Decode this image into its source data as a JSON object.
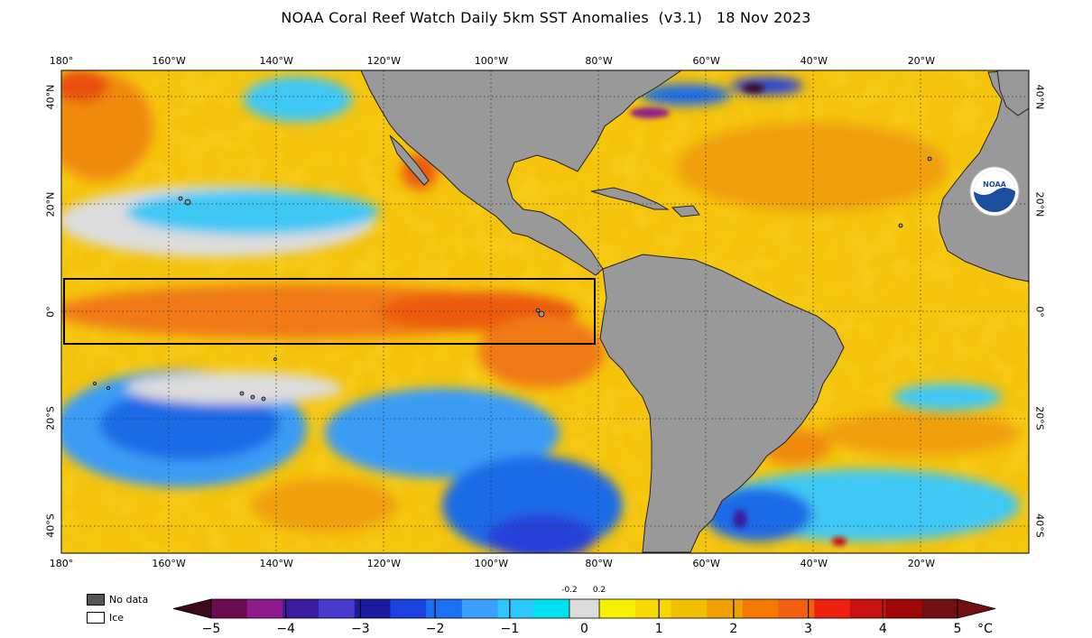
{
  "title": "NOAA Coral Reef Watch Daily 5km SST Anomalies  (v3.1)   18 Nov 2023",
  "map": {
    "extent": {
      "lon_min": -180,
      "lon_max": 0,
      "lat_min": -45,
      "lat_max": 45
    },
    "lon_ticks": [
      {
        "lon": -180,
        "label": "180°"
      },
      {
        "lon": -160,
        "label": "160°W"
      },
      {
        "lon": -140,
        "label": "140°W"
      },
      {
        "lon": -120,
        "label": "120°W"
      },
      {
        "lon": -100,
        "label": "100°W"
      },
      {
        "lon": -80,
        "label": "80°W"
      },
      {
        "lon": -60,
        "label": "60°W"
      },
      {
        "lon": -40,
        "label": "40°W"
      },
      {
        "lon": -20,
        "label": "20°W"
      }
    ],
    "lat_ticks": [
      {
        "lat": 40,
        "label": "40°N"
      },
      {
        "lat": 20,
        "label": "20°N"
      },
      {
        "lat": 0,
        "label": "0°"
      },
      {
        "lat": -20,
        "label": "20°S"
      },
      {
        "lat": -40,
        "label": "40°S"
      }
    ],
    "nino_box": {
      "lon_min": -179,
      "lon_max": -80,
      "lat_min": -6,
      "lat_max": 6
    },
    "logo": "noaa-logo-icon",
    "logo_text": "NOAA",
    "colors": {
      "land": "#999999",
      "ocean_base": "#f5c60a",
      "grid": "#333333"
    }
  },
  "legend": {
    "no_data_label": "No data",
    "ice_label": "Ice",
    "no_data_color": "#555555",
    "ice_color": "#ffffff"
  },
  "colorbar": {
    "ticks": [
      "−5",
      "−4",
      "−3",
      "−2",
      "−1",
      "0",
      "1",
      "2",
      "3",
      "4",
      "5"
    ],
    "minor_labels": [
      "-0.2",
      "0.2"
    ],
    "unit": "°C",
    "min": -5,
    "max": 5,
    "colors": [
      "#3a0a1a",
      "#6a0a50",
      "#8e1a8c",
      "#3b1a9e",
      "#4a3bd0",
      "#1a1aa0",
      "#1a40e0",
      "#1a70f0",
      "#3aa0ff",
      "#2ac8ff",
      "#00e0f0",
      "#dcdcdc",
      "#f5f000",
      "#f8d800",
      "#f0c000",
      "#f0a000",
      "#f57800",
      "#f06010",
      "#f02010",
      "#c81010",
      "#a00808",
      "#701010"
    ]
  }
}
